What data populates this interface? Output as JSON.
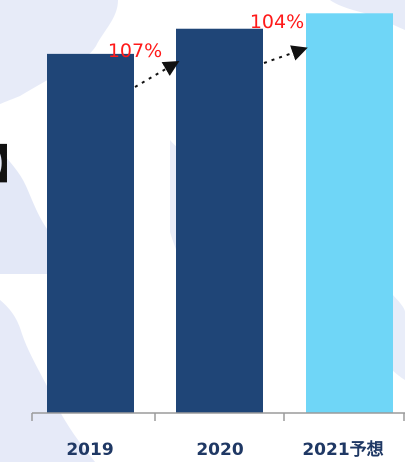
{
  "chart_data": {
    "type": "bar",
    "categories": [
      "2019",
      "2020",
      "2021予想"
    ],
    "values": [
      100,
      107,
      111.3
    ],
    "ylim": [
      0,
      115
    ],
    "bar_colors": [
      "#1f4577",
      "#1f4577",
      "#6fd6f7"
    ],
    "growth_labels": [
      {
        "from": "2019",
        "to": "2020",
        "text": "107%"
      },
      {
        "from": "2020",
        "to": "2021予想",
        "text": "104%"
      }
    ],
    "growth_color": "#ff1a1a",
    "axis_color": "#9a9a9a",
    "bracket_text": "】"
  }
}
